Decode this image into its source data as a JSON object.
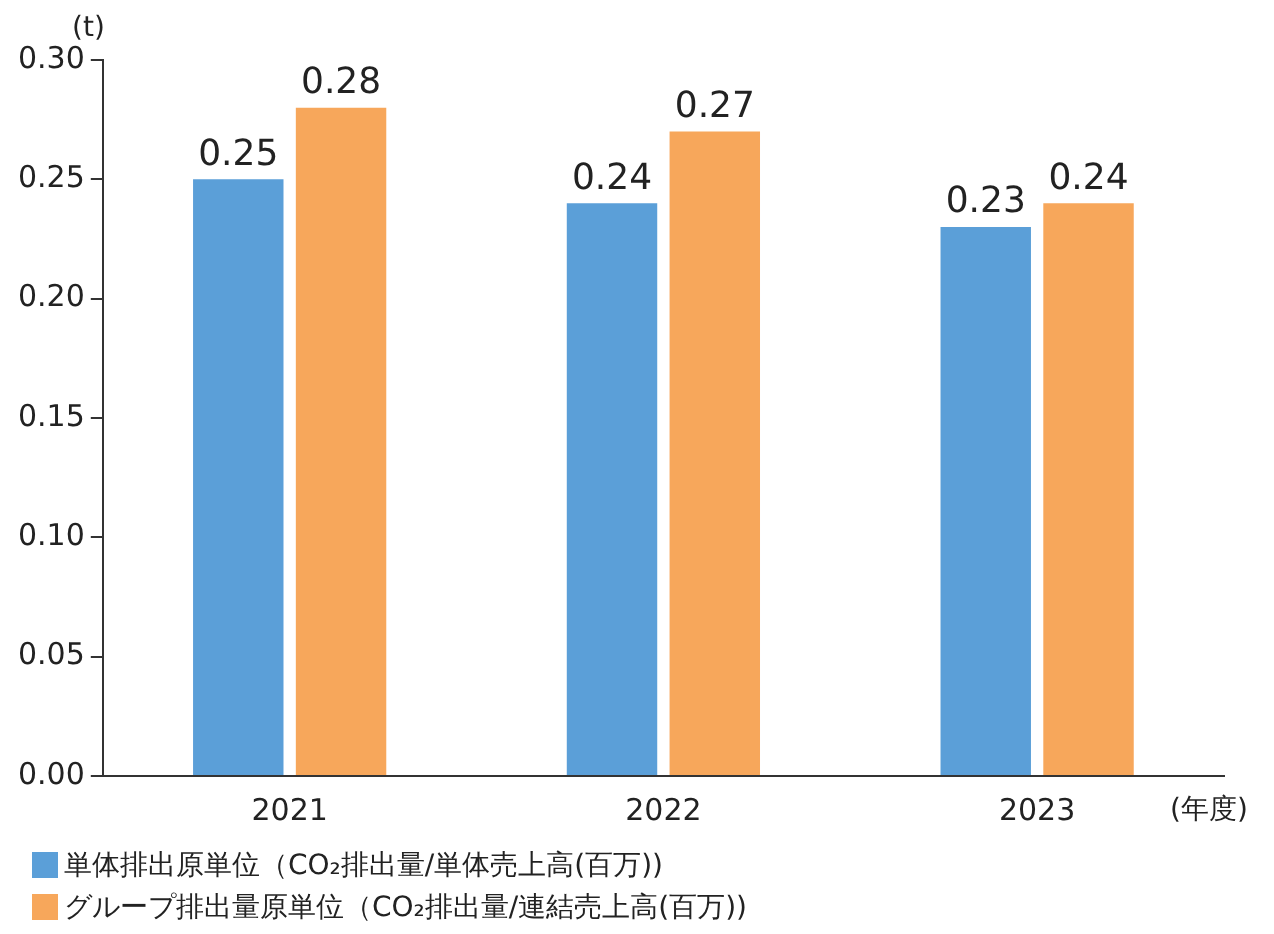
{
  "chart_data": {
    "type": "bar",
    "ylabel": "(t)",
    "xlabel": "(年度)",
    "categories": [
      "2021",
      "2022",
      "2023"
    ],
    "series": [
      {
        "name": "単体排出原単位（CO₂排出量/単体売上高(百万))",
        "color": "#5b9fd8",
        "values": [
          0.25,
          0.24,
          0.23
        ]
      },
      {
        "name": "グループ排出量原単位（CO₂排出量/連結売上高(百万))",
        "color": "#f7a75b",
        "values": [
          0.28,
          0.27,
          0.24
        ]
      }
    ],
    "ylim": [
      0,
      0.3
    ],
    "yticks": [
      {
        "value": 0,
        "label": "0.00"
      },
      {
        "value": 0.05,
        "label": "0.05"
      },
      {
        "value": 0.1,
        "label": "0.10"
      },
      {
        "value": 0.15,
        "label": "0.15"
      },
      {
        "value": 0.2,
        "label": "0.20"
      },
      {
        "value": 0.25,
        "label": "0.25"
      },
      {
        "value": 0.3,
        "label": "0.30"
      }
    ],
    "data_labels": true,
    "grid": false,
    "legend": "bottom"
  }
}
